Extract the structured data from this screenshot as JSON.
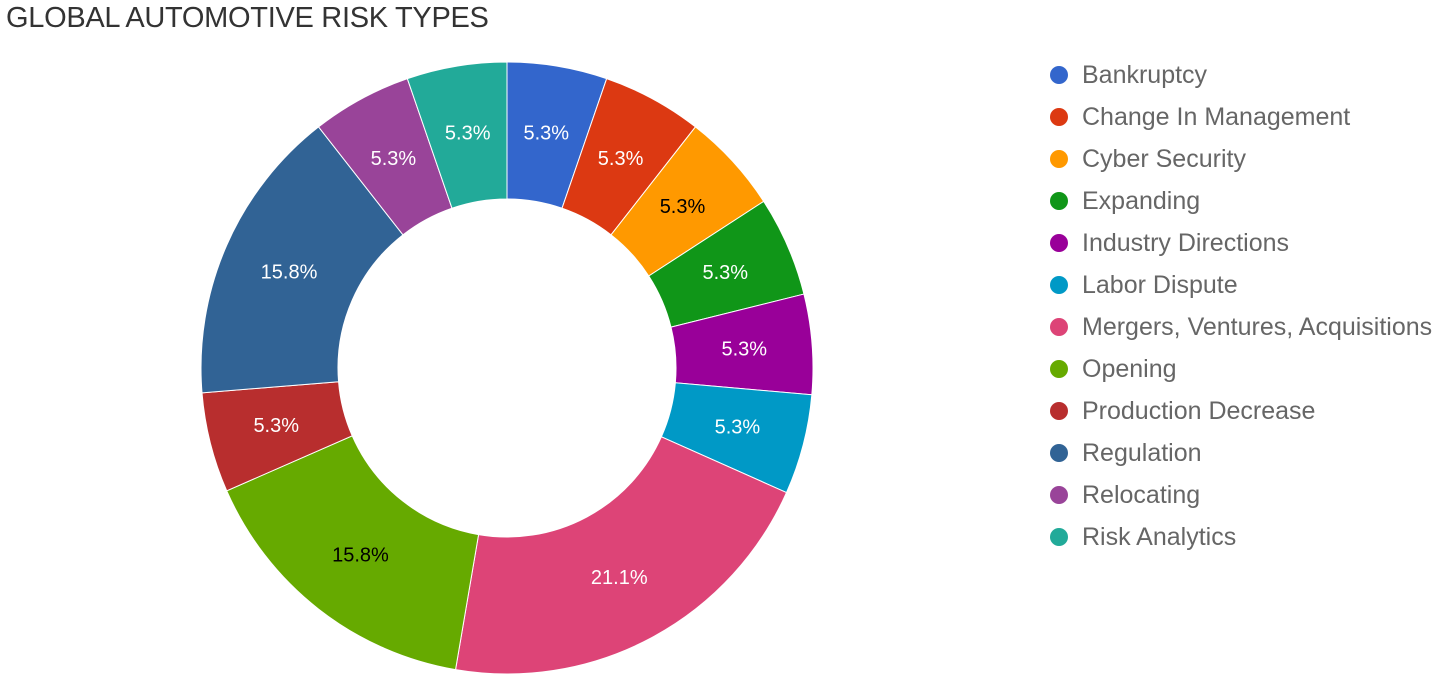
{
  "chart_data": {
    "type": "pie",
    "variant": "donut",
    "title": "GLOBAL AUTOMOTIVE RISK TYPES",
    "legend_position": "right",
    "categories": [
      "Bankruptcy",
      "Change In Management",
      "Cyber Security",
      "Expanding",
      "Industry Directions",
      "Labor Dispute",
      "Mergers, Ventures, Acquisitions",
      "Opening",
      "Production Decrease",
      "Regulation",
      "Relocating",
      "Risk Analytics"
    ],
    "values": [
      5.3,
      5.3,
      5.3,
      5.3,
      5.3,
      5.3,
      21.1,
      15.8,
      5.3,
      15.8,
      5.3,
      5.3
    ],
    "data_labels": [
      "5.3%",
      "5.3%",
      "5.3%",
      "5.3%",
      "5.3%",
      "5.3%",
      "21.1%",
      "15.8%",
      "5.3%",
      "15.8%",
      "5.3%",
      "5.3%"
    ],
    "colors": [
      "#3366cc",
      "#dc3912",
      "#ff9900",
      "#109618",
      "#990099",
      "#0099c6",
      "#dd4477",
      "#66aa00",
      "#b82e2e",
      "#316395",
      "#994499",
      "#22aa99"
    ],
    "label_colors": [
      "#ffffff",
      "#ffffff",
      "#000000",
      "#ffffff",
      "#ffffff",
      "#ffffff",
      "#ffffff",
      "#000000",
      "#ffffff",
      "#ffffff",
      "#ffffff",
      "#ffffff"
    ]
  }
}
